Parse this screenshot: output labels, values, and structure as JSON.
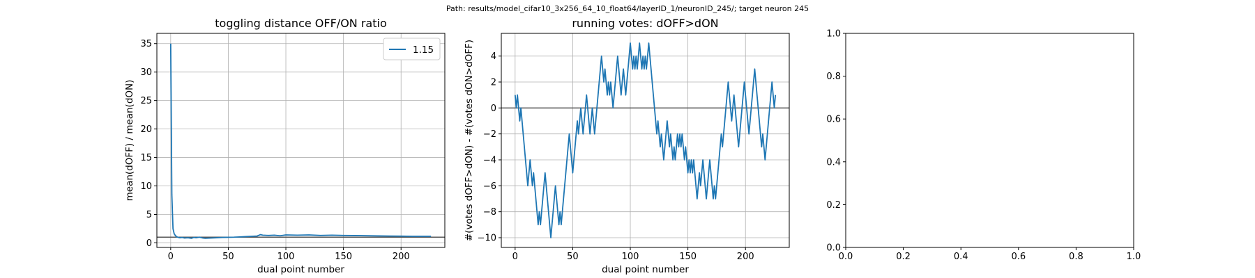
{
  "figure": {
    "suptitle": "Path: results/model_cifar10_3x256_64_10_float64/layerID_1/neuronID_245/; target neuron 245"
  },
  "chart_data": [
    {
      "type": "line",
      "title": "toggling distance OFF/ON ratio",
      "xlabel": "dual point number",
      "ylabel": "mean(dOFF) / mean(dON)",
      "xlim": [
        -12,
        238
      ],
      "ylim": [
        -0.8,
        36.8
      ],
      "xticks": [
        0,
        50,
        100,
        150,
        200
      ],
      "yticks": [
        0,
        5,
        10,
        15,
        20,
        25,
        30,
        35
      ],
      "grid": true,
      "hline": 1,
      "legend": {
        "placement": "top-right",
        "entries": [
          "1.15"
        ]
      },
      "series": [
        {
          "name": "1.15",
          "color": "#1f77b4",
          "x": [
            0,
            1,
            2,
            3,
            4,
            5,
            6,
            8,
            10,
            12,
            15,
            18,
            20,
            22,
            25,
            28,
            30,
            35,
            40,
            45,
            50,
            55,
            60,
            65,
            70,
            75,
            78,
            80,
            85,
            90,
            95,
            100,
            110,
            120,
            130,
            140,
            150,
            160,
            170,
            180,
            190,
            200,
            210,
            220,
            226
          ],
          "y": [
            35,
            8.5,
            2.5,
            1.6,
            1.3,
            1.1,
            1.0,
            0.9,
            0.95,
            0.85,
            0.9,
            0.8,
            0.95,
            0.9,
            1.0,
            0.85,
            0.8,
            0.85,
            0.9,
            0.95,
            0.98,
            1.0,
            1.05,
            1.1,
            1.15,
            1.2,
            1.45,
            1.35,
            1.3,
            1.35,
            1.25,
            1.4,
            1.35,
            1.4,
            1.3,
            1.35,
            1.3,
            1.28,
            1.25,
            1.22,
            1.2,
            1.18,
            1.15,
            1.15,
            1.15
          ]
        }
      ]
    },
    {
      "type": "line",
      "title": "running votes: dOFF>dON",
      "xlabel": "dual point number",
      "ylabel": "#(votes dOFF>dON) - #(votes dON>dOFF)",
      "xlim": [
        -12,
        238
      ],
      "ylim": [
        -10.75,
        5.75
      ],
      "xticks": [
        0,
        50,
        100,
        150,
        200
      ],
      "yticks": [
        -10,
        -8,
        -6,
        -4,
        -2,
        0,
        2,
        4
      ],
      "grid": true,
      "hline": 0,
      "series": [
        {
          "color": "#1f77b4",
          "x": [
            0,
            1,
            2,
            3,
            4,
            5,
            6,
            7,
            8,
            9,
            10,
            11,
            12,
            13,
            14,
            15,
            16,
            17,
            18,
            19,
            20,
            21,
            22,
            23,
            24,
            25,
            26,
            27,
            28,
            29,
            30,
            31,
            32,
            33,
            34,
            35,
            36,
            37,
            38,
            39,
            40,
            41,
            42,
            43,
            44,
            45,
            46,
            47,
            48,
            49,
            50,
            51,
            52,
            53,
            54,
            55,
            56,
            57,
            58,
            59,
            60,
            61,
            62,
            63,
            64,
            65,
            66,
            67,
            68,
            69,
            70,
            71,
            72,
            73,
            74,
            75,
            76,
            77,
            78,
            79,
            80,
            81,
            82,
            83,
            84,
            85,
            86,
            87,
            88,
            89,
            90,
            91,
            92,
            93,
            94,
            95,
            96,
            97,
            98,
            99,
            100,
            101,
            102,
            103,
            104,
            105,
            106,
            107,
            108,
            109,
            110,
            111,
            112,
            113,
            114,
            115,
            116,
            117,
            118,
            119,
            120,
            121,
            122,
            123,
            124,
            125,
            126,
            127,
            128,
            129,
            130,
            131,
            132,
            133,
            134,
            135,
            136,
            137,
            138,
            139,
            140,
            141,
            142,
            143,
            144,
            145,
            146,
            147,
            148,
            149,
            150,
            151,
            152,
            153,
            154,
            155,
            156,
            157,
            158,
            159,
            160,
            161,
            162,
            163,
            164,
            165,
            166,
            167,
            168,
            169,
            170,
            171,
            172,
            173,
            174,
            175,
            176,
            177,
            178,
            179,
            180,
            181,
            182,
            183,
            184,
            185,
            186,
            187,
            188,
            189,
            190,
            191,
            192,
            193,
            194,
            195,
            196,
            197,
            198,
            199,
            200,
            201,
            202,
            203,
            204,
            205,
            206,
            207,
            208,
            209,
            210,
            211,
            212,
            213,
            214,
            215,
            216,
            217,
            218,
            219,
            220,
            221,
            222,
            223,
            224,
            225,
            226
          ],
          "y": [
            1,
            0,
            1,
            0,
            -1,
            0,
            -1,
            -2,
            -3,
            -4,
            -5,
            -6,
            -5,
            -4,
            -5,
            -6,
            -5,
            -6,
            -7,
            -8,
            -9,
            -8,
            -9,
            -8,
            -7,
            -6,
            -5,
            -6,
            -7,
            -8,
            -9,
            -10,
            -9,
            -8,
            -7,
            -6,
            -7,
            -8,
            -9,
            -8,
            -9,
            -8,
            -7,
            -6,
            -5,
            -4,
            -3,
            -2,
            -3,
            -4,
            -5,
            -4,
            -3,
            -2,
            -1,
            -2,
            -1,
            0,
            -1,
            -2,
            -1,
            0,
            1,
            0,
            -1,
            -2,
            -1,
            0,
            -1,
            -2,
            -1,
            0,
            1,
            2,
            3,
            4,
            3,
            2,
            3,
            2,
            1,
            2,
            1,
            2,
            1,
            0,
            1,
            2,
            3,
            4,
            3,
            2,
            1,
            2,
            3,
            2,
            1,
            2,
            3,
            4,
            5,
            4,
            3,
            4,
            3,
            4,
            3,
            4,
            5,
            4,
            3,
            4,
            3,
            4,
            3,
            4,
            5,
            4,
            3,
            2,
            1,
            0,
            -1,
            -2,
            -1,
            -2,
            -3,
            -2,
            -3,
            -4,
            -3,
            -2,
            -1,
            -2,
            -3,
            -2,
            -3,
            -4,
            -3,
            -4,
            -3,
            -2,
            -3,
            -2,
            -3,
            -2,
            -3,
            -4,
            -3,
            -4,
            -5,
            -4,
            -5,
            -4,
            -5,
            -4,
            -5,
            -6,
            -7,
            -6,
            -5,
            -6,
            -5,
            -4,
            -5,
            -6,
            -7,
            -6,
            -5,
            -4,
            -5,
            -6,
            -7,
            -6,
            -7,
            -6,
            -5,
            -4,
            -3,
            -2,
            -3,
            -2,
            -1,
            0,
            1,
            2,
            1,
            0,
            -1,
            0,
            1,
            0,
            -1,
            -2,
            -3,
            -2,
            -1,
            0,
            1,
            2,
            1,
            0,
            -1,
            -2,
            -1,
            0,
            1,
            2,
            3,
            2,
            1,
            0,
            -1,
            -2,
            -3,
            -2,
            -3,
            -4,
            -3,
            -2,
            -1,
            0,
            1,
            2,
            1,
            0,
            1
          ]
        }
      ]
    },
    {
      "type": "line",
      "title": "",
      "xlim": [
        0,
        1
      ],
      "ylim": [
        0,
        1
      ],
      "xticks": [
        0,
        0.2,
        0.4,
        0.6,
        0.8,
        1
      ],
      "yticks": [
        0,
        0.2,
        0.4,
        0.6,
        0.8,
        1
      ],
      "xtick_labels": [
        "0.0",
        "0.2",
        "0.4",
        "0.6",
        "0.8",
        "1.0"
      ],
      "ytick_labels": [
        "0.0",
        "0.2",
        "0.4",
        "0.6",
        "0.8",
        "1.0"
      ],
      "grid": false,
      "series": []
    }
  ]
}
